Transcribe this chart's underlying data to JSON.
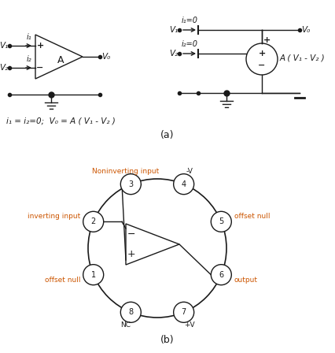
{
  "bg_color": "#ffffff",
  "line_color": "#1a1a1a",
  "text_color": "#1a1a1a",
  "orange_color": "#cc5500",
  "fig_width": 4.26,
  "fig_height": 4.48,
  "dpi": 100,
  "label_a": "(a)",
  "label_b": "(b)",
  "equation": "i₁ = i₂=0;  V₀ = A ( V₁ - V₂ )",
  "pin_labels": [
    "1",
    "2",
    "3",
    "4",
    "5",
    "6",
    "7",
    "8"
  ],
  "pin_names": [
    "offset null",
    "inverting input",
    "Noninverting input",
    "-V",
    "offset null",
    "output",
    "+V",
    "NC"
  ],
  "pin_angles_deg": [
    157.5,
    202.5,
    247.5,
    292.5,
    337.5,
    22.5,
    67.5,
    112.5
  ]
}
